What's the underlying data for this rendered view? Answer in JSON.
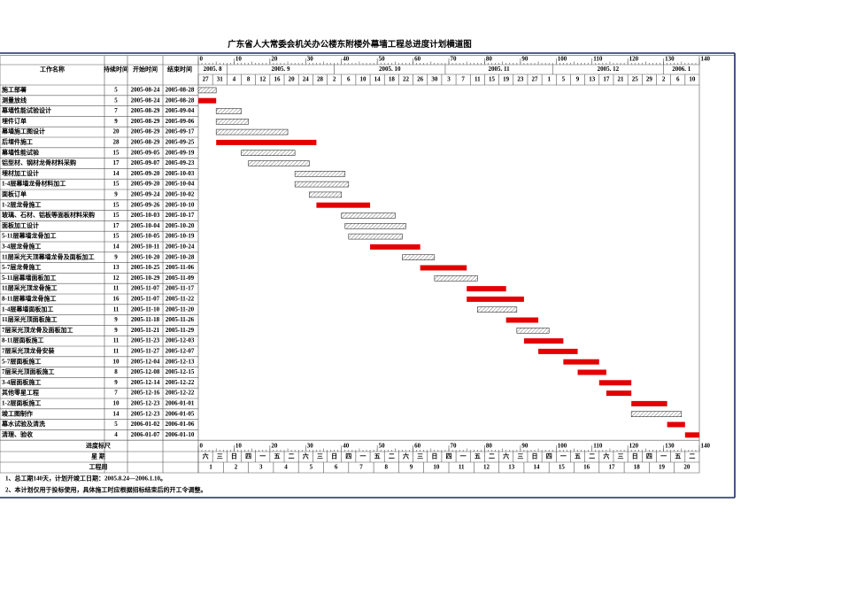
{
  "title": "广东省人大常委会机关办公楼东附楼外幕墙工程总进度计划横道图",
  "header": {
    "name": "工作名称",
    "duration": "持续时间",
    "start": "开始时间",
    "end": "结束时间"
  },
  "ruler": [
    0,
    10,
    20,
    30,
    40,
    50,
    60,
    70,
    80,
    90,
    100,
    110,
    120,
    130,
    140
  ],
  "months": [
    "2005. 8",
    "2005. 9",
    "2005. 10",
    "2005. 11",
    "2005. 12",
    "2006. 1"
  ],
  "days": [
    27,
    31,
    4,
    8,
    12,
    16,
    20,
    24,
    28,
    2,
    6,
    10,
    14,
    18,
    22,
    26,
    30,
    3,
    7,
    11,
    15,
    19,
    23,
    27,
    1,
    5,
    9,
    13,
    17,
    21,
    25,
    29,
    2,
    6,
    10
  ],
  "tasks": [
    {
      "name": "施工部署",
      "duration": 5,
      "start": "2005-08-24",
      "end": "2005-08-28",
      "fill": "hatched"
    },
    {
      "name": "测量放线",
      "duration": 5,
      "start": "2005-08-24",
      "end": "2005-08-28",
      "fill": "red"
    },
    {
      "name": "幕墙性能试验设计",
      "duration": 7,
      "start": "2005-08-29",
      "end": "2005-09-04",
      "fill": "hatched"
    },
    {
      "name": "埋件订单",
      "duration": 9,
      "start": "2005-08-29",
      "end": "2005-09-06",
      "fill": "hatched"
    },
    {
      "name": "幕墙施工图设计",
      "duration": 20,
      "start": "2005-08-29",
      "end": "2005-09-17",
      "fill": "hatched"
    },
    {
      "name": "后埋件施工",
      "duration": 28,
      "start": "2005-08-29",
      "end": "2005-09-25",
      "fill": "red"
    },
    {
      "name": "幕墙性能试验",
      "duration": 15,
      "start": "2005-09-05",
      "end": "2005-09-19",
      "fill": "hatched"
    },
    {
      "name": "铝型材、钢材龙骨材料采购",
      "duration": 17,
      "start": "2005-09-07",
      "end": "2005-09-23",
      "fill": "hatched"
    },
    {
      "name": "埋材加工设计",
      "duration": 14,
      "start": "2005-09-20",
      "end": "2005-10-03",
      "fill": "hatched"
    },
    {
      "name": "1-4层幕墙龙骨材料加工",
      "duration": 15,
      "start": "2005-09-20",
      "end": "2005-10-04",
      "fill": "hatched"
    },
    {
      "name": "面板订单",
      "duration": 9,
      "start": "2005-09-24",
      "end": "2005-10-02",
      "fill": "hatched"
    },
    {
      "name": "1-2层龙骨施工",
      "duration": 15,
      "start": "2005-09-26",
      "end": "2005-10-10",
      "fill": "red"
    },
    {
      "name": "玻璃、石材、铝板等面板材料采购",
      "duration": 15,
      "start": "2005-10-03",
      "end": "2005-10-17",
      "fill": "hatched"
    },
    {
      "name": "面板加工设计",
      "duration": 17,
      "start": "2005-10-04",
      "end": "2005-10-20",
      "fill": "hatched"
    },
    {
      "name": "5-11层幕墙龙骨加工",
      "duration": 15,
      "start": "2005-10-05",
      "end": "2005-10-19",
      "fill": "hatched"
    },
    {
      "name": "3-4层龙骨施工",
      "duration": 14,
      "start": "2005-10-11",
      "end": "2005-10-24",
      "fill": "red"
    },
    {
      "name": "11层采光天顶幕墙龙骨及面板加工",
      "duration": 9,
      "start": "2005-10-20",
      "end": "2005-10-28",
      "fill": "hatched"
    },
    {
      "name": "5-7层龙骨施工",
      "duration": 13,
      "start": "2005-10-25",
      "end": "2005-11-06",
      "fill": "red"
    },
    {
      "name": "5-11层幕墙面板加工",
      "duration": 12,
      "start": "2005-10-29",
      "end": "2005-11-09",
      "fill": "hatched"
    },
    {
      "name": "11层采光顶龙骨施工",
      "duration": 11,
      "start": "2005-11-07",
      "end": "2005-11-17",
      "fill": "red"
    },
    {
      "name": "8-11层幕墙龙骨施工",
      "duration": 16,
      "start": "2005-11-07",
      "end": "2005-11-22",
      "fill": "red"
    },
    {
      "name": "1-4层幕墙面板加工",
      "duration": 11,
      "start": "2005-11-10",
      "end": "2005-11-20",
      "fill": "hatched"
    },
    {
      "name": "11层采光顶面板施工",
      "duration": 9,
      "start": "2005-11-18",
      "end": "2005-11-26",
      "fill": "red"
    },
    {
      "name": "7层采光顶龙骨及面板加工",
      "duration": 9,
      "start": "2005-11-21",
      "end": "2005-11-29",
      "fill": "hatched"
    },
    {
      "name": "8-11层面板施工",
      "duration": 11,
      "start": "2005-11-23",
      "end": "2005-12-03",
      "fill": "red"
    },
    {
      "name": "7层采光顶龙骨安装",
      "duration": 11,
      "start": "2005-11-27",
      "end": "2005-12-07",
      "fill": "red"
    },
    {
      "name": "5-7层面板施工",
      "duration": 10,
      "start": "2005-12-04",
      "end": "2005-12-13",
      "fill": "red"
    },
    {
      "name": "7层采光顶面板施工",
      "duration": 8,
      "start": "2005-12-08",
      "end": "2005-12-15",
      "fill": "red"
    },
    {
      "name": "3-4层面板施工",
      "duration": 9,
      "start": "2005-12-14",
      "end": "2005-12-22",
      "fill": "red"
    },
    {
      "name": "其他零星工程",
      "duration": 7,
      "start": "2005-12-16",
      "end": "2005-12-22",
      "fill": "red"
    },
    {
      "name": "1-2层面板施工",
      "duration": 10,
      "start": "2005-12-23",
      "end": "2006-01-01",
      "fill": "red"
    },
    {
      "name": "竣工图制作",
      "duration": 14,
      "start": "2005-12-23",
      "end": "2006-01-05",
      "fill": "hatched"
    },
    {
      "name": "幕水试验及清洗",
      "duration": 5,
      "start": "2006-01-02",
      "end": "2006-01-06",
      "fill": "red"
    },
    {
      "name": "清理、验收",
      "duration": 4,
      "start": "2006-01-07",
      "end": "2006-01-10",
      "fill": "red"
    }
  ],
  "footer": {
    "ruler_label": "进度标尺",
    "weekday_label": "星 期",
    "week_label": "工程周",
    "weekdays": [
      "六",
      "三",
      "日",
      "四",
      "一",
      "五",
      "二",
      "六",
      "三",
      "日",
      "四",
      "一",
      "五",
      "二",
      "六",
      "三",
      "日",
      "四",
      "一",
      "五",
      "二",
      "六",
      "三",
      "日",
      "四",
      "一",
      "五",
      "二",
      "六",
      "三",
      "日",
      "四",
      "一",
      "五",
      "二"
    ],
    "weeks": [
      1,
      2,
      3,
      4,
      5,
      6,
      7,
      8,
      9,
      10,
      11,
      12,
      13,
      14,
      15,
      16,
      17,
      18,
      19,
      20
    ]
  },
  "notes": [
    "1、总工期140天，计划开竣工日期：2005.8.24—2006.1.10。",
    "2、本计划仅用于投标使用，具体施工时应根据招标结束后的开工令调整。"
  ]
}
